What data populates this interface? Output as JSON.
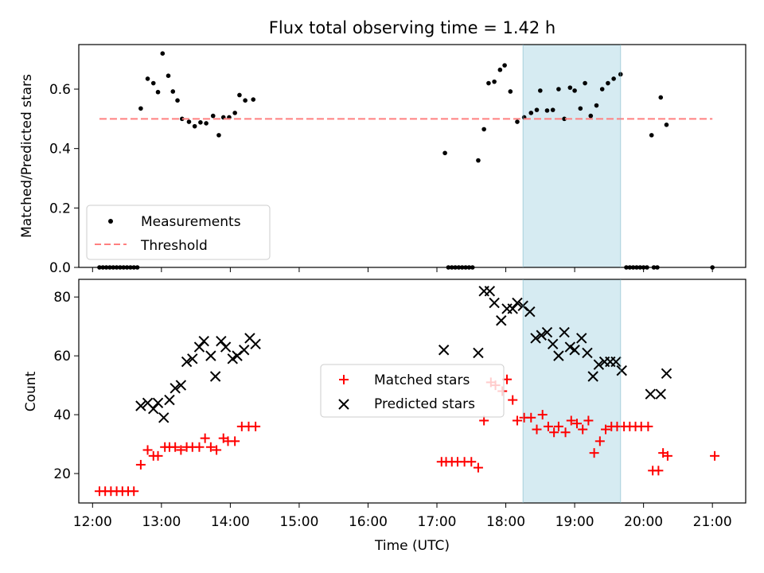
{
  "chart_data": [
    {
      "type": "scatter",
      "title": "Flux total observing time = 1.42 h",
      "ylabel": "Matched/Predicted stars",
      "xlim": [
        "11:48",
        "21:29"
      ],
      "ylim": [
        0,
        0.75
      ],
      "yticks": [
        "0.0",
        "0.2",
        "0.4",
        "0.6"
      ],
      "yticks_values": [
        0.0,
        0.2,
        0.4,
        0.6
      ],
      "shaded_interval": [
        "18:15",
        "19:40"
      ],
      "shaded_color": "#add8e6",
      "legend": {
        "placement": "lower-left",
        "entries": [
          "Measurements",
          "Threshold"
        ]
      },
      "series": [
        {
          "name": "Measurements",
          "color": "#000000",
          "marker": "dot",
          "points": [
            [
              "12:06",
              0
            ],
            [
              "12:09",
              0
            ],
            [
              "12:12",
              0
            ],
            [
              "12:15",
              0
            ],
            [
              "12:18",
              0
            ],
            [
              "12:21",
              0
            ],
            [
              "12:24",
              0
            ],
            [
              "12:27",
              0
            ],
            [
              "12:30",
              0
            ],
            [
              "12:33",
              0
            ],
            [
              "12:36",
              0
            ],
            [
              "12:39",
              0
            ],
            [
              "12:42",
              0.535
            ],
            [
              "12:48",
              0.635
            ],
            [
              "12:53",
              0.62
            ],
            [
              "12:57",
              0.59
            ],
            [
              "13:01",
              0.72
            ],
            [
              "13:06",
              0.645
            ],
            [
              "13:10",
              0.592
            ],
            [
              "13:14",
              0.562
            ],
            [
              "13:18",
              0.5
            ],
            [
              "13:24",
              0.49
            ],
            [
              "13:29",
              0.475
            ],
            [
              "13:34",
              0.488
            ],
            [
              "13:39",
              0.485
            ],
            [
              "13:45",
              0.51
            ],
            [
              "13:50",
              0.445
            ],
            [
              "13:54",
              0.505
            ],
            [
              "13:59",
              0.505
            ],
            [
              "14:04",
              0.52
            ],
            [
              "14:08",
              0.58
            ],
            [
              "14:13",
              0.562
            ],
            [
              "14:20",
              0.565
            ],
            [
              "17:07",
              0.385
            ],
            [
              "17:10",
              0
            ],
            [
              "17:13",
              0
            ],
            [
              "17:16",
              0
            ],
            [
              "17:19",
              0
            ],
            [
              "17:22",
              0
            ],
            [
              "17:25",
              0
            ],
            [
              "17:28",
              0
            ],
            [
              "17:31",
              0
            ],
            [
              "17:36",
              0.36
            ],
            [
              "17:41",
              0.465
            ],
            [
              "17:45",
              0.62
            ],
            [
              "17:50",
              0.625
            ],
            [
              "17:55",
              0.665
            ],
            [
              "17:59",
              0.68
            ],
            [
              "18:04",
              0.592
            ],
            [
              "18:10",
              0.49
            ],
            [
              "18:16",
              0.505
            ],
            [
              "18:22",
              0.52
            ],
            [
              "18:27",
              0.53
            ],
            [
              "18:30",
              0.595
            ],
            [
              "18:36",
              0.528
            ],
            [
              "18:41",
              0.53
            ],
            [
              "18:46",
              0.6
            ],
            [
              "18:51",
              0.5
            ],
            [
              "18:56",
              0.605
            ],
            [
              "19:00",
              0.595
            ],
            [
              "19:05",
              0.535
            ],
            [
              "19:09",
              0.62
            ],
            [
              "19:14",
              0.51
            ],
            [
              "19:19",
              0.545
            ],
            [
              "19:24",
              0.6
            ],
            [
              "19:29",
              0.62
            ],
            [
              "19:34",
              0.635
            ],
            [
              "19:40",
              0.65
            ],
            [
              "19:45",
              0
            ],
            [
              "19:48",
              0
            ],
            [
              "19:51",
              0
            ],
            [
              "19:54",
              0
            ],
            [
              "19:57",
              0
            ],
            [
              "20:00",
              0
            ],
            [
              "20:03",
              0
            ],
            [
              "20:07",
              0.445
            ],
            [
              "20:09",
              0
            ],
            [
              "20:12",
              0
            ],
            [
              "20:15",
              0.572
            ],
            [
              "20:20",
              0.48
            ],
            [
              "21:00",
              0
            ]
          ]
        },
        {
          "name": "Threshold",
          "color": "#ff8080",
          "style": "dashed",
          "x": [
            "12:06",
            "21:00"
          ],
          "y": [
            0.5,
            0.5
          ]
        }
      ]
    },
    {
      "type": "scatter",
      "xlabel": "Time (UTC)",
      "ylabel": "Count",
      "xlim": [
        "11:48",
        "21:29"
      ],
      "ylim": [
        10,
        86
      ],
      "yticks": [
        "20",
        "40",
        "60",
        "80"
      ],
      "yticks_values": [
        20,
        40,
        60,
        80
      ],
      "xticks": [
        "12:00",
        "13:00",
        "14:00",
        "15:00",
        "16:00",
        "17:00",
        "18:00",
        "19:00",
        "20:00",
        "21:00"
      ],
      "shaded_interval": [
        "18:15",
        "19:40"
      ],
      "shaded_color": "#add8e6",
      "legend": {
        "placement": "center",
        "entries": [
          "Matched stars",
          "Predicted stars"
        ]
      },
      "series": [
        {
          "name": "Matched stars",
          "color": "#ff0000",
          "marker": "plus",
          "points": [
            [
              "12:06",
              14
            ],
            [
              "12:11",
              14
            ],
            [
              "12:16",
              14
            ],
            [
              "12:21",
              14
            ],
            [
              "12:26",
              14
            ],
            [
              "12:31",
              14
            ],
            [
              "12:36",
              14
            ],
            [
              "12:42",
              23
            ],
            [
              "12:48",
              28
            ],
            [
              "12:53",
              26
            ],
            [
              "12:57",
              26
            ],
            [
              "13:03",
              29
            ],
            [
              "13:07",
              29
            ],
            [
              "13:12",
              29
            ],
            [
              "13:17",
              28
            ],
            [
              "13:22",
              29
            ],
            [
              "13:27",
              29
            ],
            [
              "13:33",
              29
            ],
            [
              "13:38",
              32
            ],
            [
              "13:43",
              29
            ],
            [
              "13:48",
              28
            ],
            [
              "13:54",
              32
            ],
            [
              "13:58",
              31
            ],
            [
              "14:04",
              31
            ],
            [
              "14:10",
              36
            ],
            [
              "14:16",
              36
            ],
            [
              "14:22",
              36
            ],
            [
              "17:04",
              24
            ],
            [
              "17:08",
              24
            ],
            [
              "17:13",
              24
            ],
            [
              "17:18",
              24
            ],
            [
              "17:24",
              24
            ],
            [
              "17:30",
              24
            ],
            [
              "17:36",
              22
            ],
            [
              "17:41",
              38
            ],
            [
              "17:47",
              51
            ],
            [
              "17:51",
              50
            ],
            [
              "17:57",
              48
            ],
            [
              "18:01",
              52
            ],
            [
              "18:06",
              45
            ],
            [
              "18:10",
              38
            ],
            [
              "18:16",
              39
            ],
            [
              "18:22",
              39
            ],
            [
              "18:27",
              35
            ],
            [
              "18:32",
              40
            ],
            [
              "18:37",
              36
            ],
            [
              "18:42",
              34
            ],
            [
              "18:46",
              36
            ],
            [
              "18:52",
              34
            ],
            [
              "18:57",
              38
            ],
            [
              "19:02",
              37
            ],
            [
              "19:07",
              35
            ],
            [
              "19:12",
              38
            ],
            [
              "19:17",
              27
            ],
            [
              "19:22",
              31
            ],
            [
              "19:27",
              35
            ],
            [
              "19:32",
              36
            ],
            [
              "19:37",
              36
            ],
            [
              "19:43",
              36
            ],
            [
              "19:48",
              36
            ],
            [
              "19:53",
              36
            ],
            [
              "19:58",
              36
            ],
            [
              "20:04",
              36
            ],
            [
              "20:08",
              21
            ],
            [
              "20:13",
              21
            ],
            [
              "20:17",
              27
            ],
            [
              "20:21",
              26
            ],
            [
              "21:02",
              26
            ]
          ]
        },
        {
          "name": "Predicted stars",
          "color": "#000000",
          "marker": "x",
          "points": [
            [
              "12:42",
              43
            ],
            [
              "12:48",
              44
            ],
            [
              "12:53",
              42
            ],
            [
              "12:57",
              44
            ],
            [
              "13:02",
              39
            ],
            [
              "13:07",
              45
            ],
            [
              "13:12",
              49
            ],
            [
              "13:17",
              50
            ],
            [
              "13:22",
              58
            ],
            [
              "13:27",
              59
            ],
            [
              "13:33",
              63
            ],
            [
              "13:37",
              65
            ],
            [
              "13:43",
              60
            ],
            [
              "13:47",
              53
            ],
            [
              "13:52",
              65
            ],
            [
              "13:56",
              63
            ],
            [
              "14:02",
              59
            ],
            [
              "14:06",
              60
            ],
            [
              "14:12",
              62
            ],
            [
              "14:17",
              66
            ],
            [
              "14:22",
              64
            ],
            [
              "17:06",
              62
            ],
            [
              "17:36",
              61
            ],
            [
              "17:41",
              82
            ],
            [
              "17:46",
              82
            ],
            [
              "17:50",
              78
            ],
            [
              "17:56",
              72
            ],
            [
              "18:01",
              76
            ],
            [
              "18:06",
              76
            ],
            [
              "18:10",
              78
            ],
            [
              "18:15",
              77
            ],
            [
              "18:21",
              75
            ],
            [
              "18:26",
              66
            ],
            [
              "18:31",
              67
            ],
            [
              "18:36",
              68
            ],
            [
              "18:41",
              64
            ],
            [
              "18:46",
              60
            ],
            [
              "18:51",
              68
            ],
            [
              "18:56",
              63
            ],
            [
              "19:00",
              62
            ],
            [
              "19:06",
              66
            ],
            [
              "19:11",
              61
            ],
            [
              "19:16",
              53
            ],
            [
              "19:21",
              57
            ],
            [
              "19:26",
              58
            ],
            [
              "19:31",
              58
            ],
            [
              "19:36",
              58
            ],
            [
              "19:41",
              55
            ],
            [
              "20:06",
              47
            ],
            [
              "20:15",
              47
            ],
            [
              "20:20",
              54
            ]
          ]
        }
      ]
    }
  ]
}
